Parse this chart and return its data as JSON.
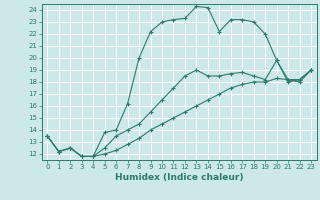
{
  "xlabel": "Humidex (Indice chaleur)",
  "xlim": [
    -0.5,
    23.5
  ],
  "ylim": [
    11.5,
    24.5
  ],
  "xticks": [
    0,
    1,
    2,
    3,
    4,
    5,
    6,
    7,
    8,
    9,
    10,
    11,
    12,
    13,
    14,
    15,
    16,
    17,
    18,
    19,
    20,
    21,
    22,
    23
  ],
  "yticks": [
    12,
    13,
    14,
    15,
    16,
    17,
    18,
    19,
    20,
    21,
    22,
    23,
    24
  ],
  "bg_color": "#cce8e8",
  "line_color": "#2d7a6a",
  "grid_color": "#ffffff",
  "lines": [
    {
      "x": [
        0,
        1,
        2,
        3,
        4,
        5,
        6,
        7,
        8,
        9,
        10,
        11,
        12,
        13,
        14,
        15,
        16,
        17,
        18,
        19,
        20,
        21,
        22,
        23
      ],
      "y": [
        13.5,
        12.2,
        12.5,
        11.8,
        11.8,
        13.8,
        14.0,
        16.2,
        20.0,
        22.2,
        23.0,
        23.2,
        23.3,
        24.3,
        24.2,
        22.2,
        23.2,
        23.2,
        23.0,
        22.0,
        19.8,
        18.0,
        18.2,
        19.0
      ]
    },
    {
      "x": [
        0,
        1,
        2,
        3,
        4,
        5,
        6,
        7,
        8,
        9,
        10,
        11,
        12,
        13,
        14,
        15,
        16,
        17,
        18,
        19,
        20,
        21,
        22,
        23
      ],
      "y": [
        13.5,
        12.2,
        12.5,
        11.8,
        11.8,
        12.5,
        13.5,
        14.0,
        14.5,
        15.5,
        16.5,
        17.5,
        18.5,
        19.0,
        18.5,
        18.5,
        18.7,
        18.8,
        18.5,
        18.2,
        19.8,
        18.2,
        18.0,
        19.0
      ]
    },
    {
      "x": [
        0,
        1,
        2,
        3,
        4,
        5,
        6,
        7,
        8,
        9,
        10,
        11,
        12,
        13,
        14,
        15,
        16,
        17,
        18,
        19,
        20,
        21,
        22,
        23
      ],
      "y": [
        13.5,
        12.2,
        12.5,
        11.8,
        11.8,
        12.0,
        12.3,
        12.8,
        13.3,
        14.0,
        14.5,
        15.0,
        15.5,
        16.0,
        16.5,
        17.0,
        17.5,
        17.8,
        18.0,
        18.0,
        18.3,
        18.2,
        18.2,
        19.0
      ]
    }
  ]
}
